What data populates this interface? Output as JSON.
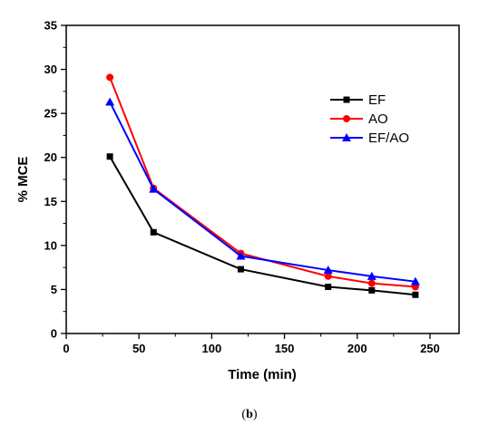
{
  "chart_data": {
    "type": "line",
    "xlabel": "Time (min)",
    "ylabel": "% MCE",
    "xlim": [
      0,
      270
    ],
    "ylim": [
      0,
      35
    ],
    "xticks": [
      0,
      50,
      100,
      150,
      200,
      250
    ],
    "yticks": [
      0,
      5,
      10,
      15,
      20,
      25,
      30,
      35
    ],
    "legend_position": "top-right",
    "x": [
      30,
      60,
      120,
      180,
      210,
      240
    ],
    "series": [
      {
        "name": "EF",
        "color": "#000000",
        "marker": "square",
        "values": [
          20.1,
          11.5,
          7.3,
          5.3,
          4.9,
          4.4
        ]
      },
      {
        "name": "AO",
        "color": "#ff0000",
        "marker": "circle",
        "values": [
          29.1,
          16.5,
          9.1,
          6.5,
          5.7,
          5.3
        ]
      },
      {
        "name": "EF/AO",
        "color": "#0000ff",
        "marker": "triangle",
        "values": [
          26.3,
          16.4,
          8.8,
          7.2,
          6.5,
          5.9
        ]
      }
    ]
  },
  "caption": {
    "open": "(",
    "label": "b",
    "close": ")"
  }
}
